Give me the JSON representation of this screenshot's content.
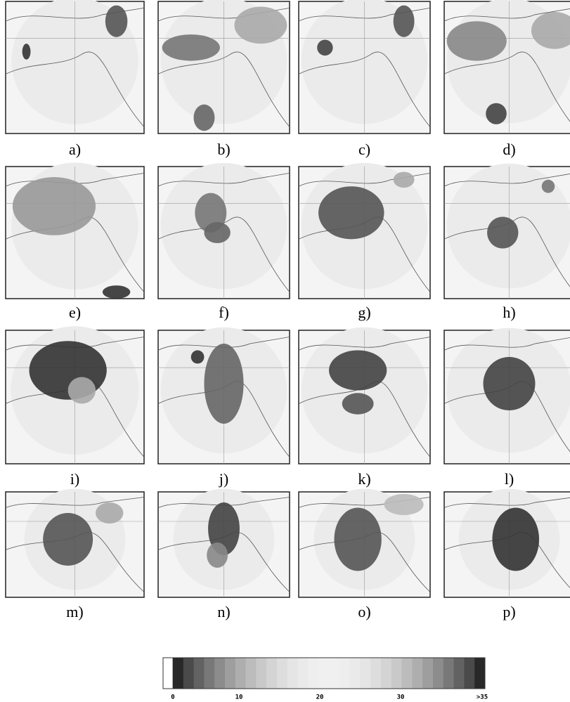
{
  "panels": [
    {
      "label": "a)"
    },
    {
      "label": "b)"
    },
    {
      "label": "c)"
    },
    {
      "label": "d)"
    },
    {
      "label": "e)"
    },
    {
      "label": "f)"
    },
    {
      "label": "g)"
    },
    {
      "label": "h)"
    },
    {
      "label": "i)"
    },
    {
      "label": "j)"
    },
    {
      "label": "k)"
    },
    {
      "label": "l)"
    },
    {
      "label": "m)"
    },
    {
      "label": "n)"
    },
    {
      "label": "o)"
    },
    {
      "label": "p)"
    }
  ],
  "colorbar": {
    "ticks": [
      "0",
      "10",
      "20",
      "30",
      ">35"
    ]
  }
}
